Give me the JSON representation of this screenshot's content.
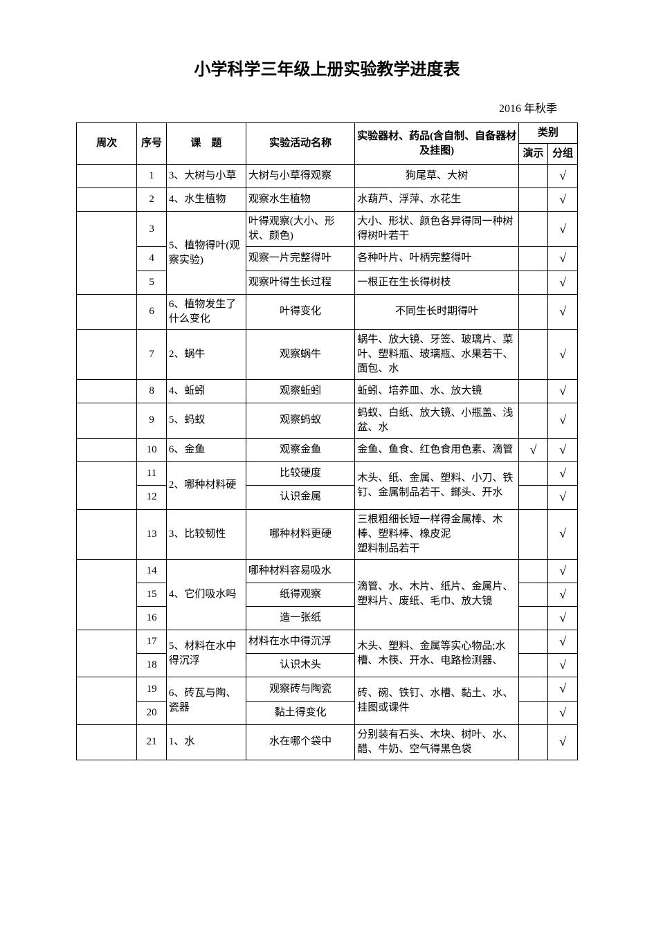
{
  "title": "小学科学三年级上册实验教学进度表",
  "subtitle": "2016 年秋季",
  "headers": {
    "week": "周次",
    "seq": "序号",
    "topic": "课　题",
    "activity": "实验活动名称",
    "equipment": "实验器材、药品(含自制、自备器材及挂图)",
    "category": "类别",
    "demo": "演示",
    "group": "分组"
  },
  "check": "√",
  "topics": {
    "t1": "3、大树与小草",
    "t2": "4、水生植物",
    "t3": "5、植物得叶(观察实验)",
    "t4": "6、植物发生了什么变化",
    "t5": "2、蜗牛",
    "t6": "4、蚯蚓",
    "t7": "5、蚂蚁",
    "t8": "6、金鱼",
    "t9": "2、哪种材料硬",
    "t10": "3、比较韧性",
    "t11": "4、它们吸水吗",
    "t12": "5、材料在水中得沉浮",
    "t13": "6、砖瓦与陶、瓷器",
    "t14": "1、水"
  },
  "rows": {
    "r1": {
      "seq": "1",
      "act": "大树与小草得观察",
      "equip": "狗尾草、大树",
      "demo": "",
      "group": "√"
    },
    "r2": {
      "seq": "2",
      "act": "观察水生植物",
      "equip": "水葫芦、浮萍、水花生",
      "demo": "",
      "group": "√"
    },
    "r3": {
      "seq": "3",
      "act": "叶得观察(大小、形状、颜色)",
      "equip": "大小、形状、颜色各异得同一种树得树叶若干",
      "demo": "",
      "group": "√"
    },
    "r4": {
      "seq": "4",
      "act": "观察一片完整得叶",
      "equip": "各种叶片、叶柄完整得叶",
      "demo": "",
      "group": "√"
    },
    "r5": {
      "seq": "5",
      "act": "观察叶得生长过程",
      "equip": "一根正在生长得树枝",
      "demo": "",
      "group": "√"
    },
    "r6": {
      "seq": "6",
      "act": "叶得变化",
      "equip": "不同生长时期得叶",
      "demo": "",
      "group": "√"
    },
    "r7": {
      "seq": "7",
      "act": "观察蜗牛",
      "equip": "蜗牛、放大镜、牙签、玻璃片、菜叶、塑料瓶、玻璃瓶、水果若干、面包、水",
      "demo": "",
      "group": "√"
    },
    "r8": {
      "seq": "8",
      "act": "观察蚯蚓",
      "equip": "蚯蚓、培养皿、水、放大镜",
      "demo": "",
      "group": "√"
    },
    "r9": {
      "seq": "9",
      "act": "观察蚂蚁",
      "equip": "蚂蚁、白纸、放大镜、小瓶盖、浅盆、水",
      "demo": "",
      "group": "√"
    },
    "r10": {
      "seq": "10",
      "act": "观察金鱼",
      "equip": "金鱼、鱼食、红色食用色素、滴管",
      "demo": "√",
      "group": "√"
    },
    "r11": {
      "seq": "11",
      "act": "比较硬度",
      "demo": "",
      "group": "√"
    },
    "r12": {
      "seq": "12",
      "act": "认识金属",
      "demo": "",
      "group": "√"
    },
    "equip11_12": "木头、纸、金属、塑料、小刀、铁钉、金属制品若干、鎯头、开水",
    "r13": {
      "seq": "13",
      "act": "哪种材料更硬",
      "equip": "三根粗细长短一样得金属棒、木棒、塑料棒、橡皮泥\n塑料制品若干",
      "demo": "",
      "group": "√"
    },
    "r14": {
      "seq": "14",
      "act": "哪种材料容易吸水",
      "demo": "",
      "group": "√"
    },
    "r15": {
      "seq": "15",
      "act": "纸得观察",
      "demo": "",
      "group": "√"
    },
    "r16": {
      "seq": "16",
      "act": "造一张纸",
      "demo": "",
      "group": "√"
    },
    "equip14_16": "滴管、水、木片、纸片、金属片、塑料片、废纸、毛巾、放大镜",
    "r17": {
      "seq": "17",
      "act": "材料在水中得沉浮",
      "demo": "",
      "group": "√"
    },
    "r18": {
      "seq": "18",
      "act": "认识木头",
      "demo": "",
      "group": "√"
    },
    "equip17_18": "木头、塑料、金属等实心物品;水槽、木筷、开水、电路检测器、",
    "r19": {
      "seq": "19",
      "act": "观察砖与陶瓷",
      "demo": "",
      "group": "√"
    },
    "r20": {
      "seq": "20",
      "act": "黏土得变化",
      "demo": "",
      "group": "√"
    },
    "equip19_20": "砖、碗、铁钉、水槽、黏土、水、挂图或课件",
    "r21": {
      "seq": "21",
      "act": "水在哪个袋中",
      "equip": "分别装有石头、木块、树叶、水、醋、牛奶、空气得黑色袋",
      "demo": "",
      "group": "√"
    }
  }
}
